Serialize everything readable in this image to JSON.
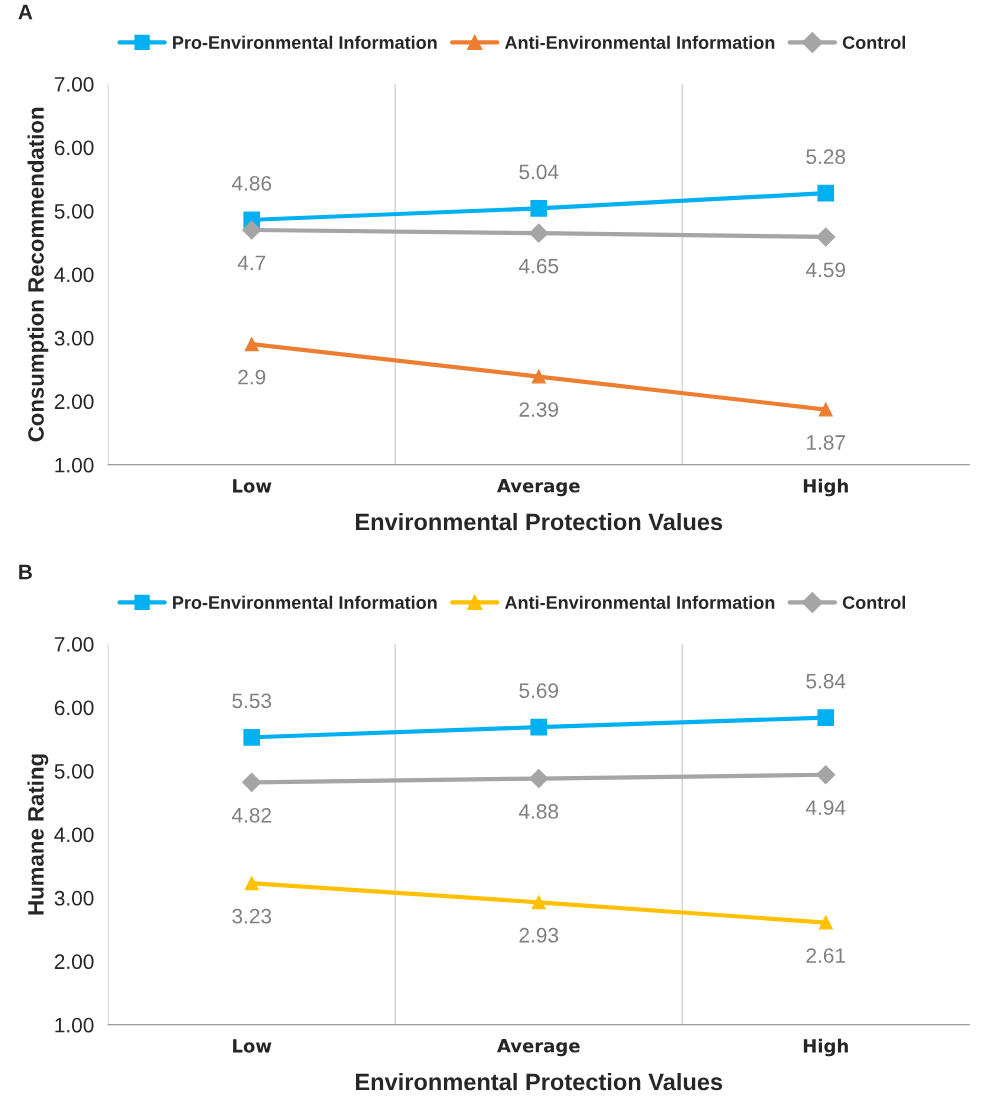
{
  "chart_data": [
    {
      "type": "line",
      "title": "A",
      "xlabel": "Environmental Protection Values",
      "ylabel": "Consumption Recommendation",
      "categories": [
        "Low",
        "Average",
        "High"
      ],
      "series": [
        {
          "name": "Pro-Environmental Information",
          "color": "#00b0f0",
          "marker": "square",
          "values": [
            4.86,
            5.04,
            5.28
          ]
        },
        {
          "name": "Anti-Environmental Information",
          "color": "#ed7d31",
          "marker": "triangle",
          "values": [
            2.9,
            2.39,
            1.87
          ]
        },
        {
          "name": "Control",
          "color": "#a5a5a5",
          "marker": "diamond",
          "values": [
            4.7,
            4.65,
            4.59
          ]
        }
      ],
      "ylim": [
        1,
        7
      ],
      "yticks": [
        {
          "value": 1,
          "label": "1.00"
        },
        {
          "value": 2,
          "label": "2.00"
        },
        {
          "value": 3,
          "label": "3.00"
        },
        {
          "value": 4,
          "label": "4.00"
        },
        {
          "value": 5,
          "label": "5.00"
        },
        {
          "value": 6,
          "label": "6.00"
        },
        {
          "value": 7,
          "label": "7.00"
        }
      ],
      "grid": "x",
      "legend": "top",
      "data_labels": true
    },
    {
      "type": "line",
      "title": "B",
      "xlabel": "Environmental Protection Values",
      "ylabel": "Humane Rating",
      "categories": [
        "Low",
        "Average",
        "High"
      ],
      "series": [
        {
          "name": "Pro-Environmental Information",
          "color": "#00b0f0",
          "marker": "square",
          "values": [
            5.53,
            5.69,
            5.84
          ]
        },
        {
          "name": "Anti-Environmental Information",
          "color": "#ffc000",
          "marker": "triangle",
          "values": [
            3.23,
            2.93,
            2.61
          ]
        },
        {
          "name": "Control",
          "color": "#a5a5a5",
          "marker": "diamond",
          "values": [
            4.82,
            4.88,
            4.94
          ]
        }
      ],
      "ylim": [
        1,
        7
      ],
      "yticks": [
        {
          "value": 1,
          "label": "1.00"
        },
        {
          "value": 2,
          "label": "2.00"
        },
        {
          "value": 3,
          "label": "3.00"
        },
        {
          "value": 4,
          "label": "4.00"
        },
        {
          "value": 5,
          "label": "5.00"
        },
        {
          "value": 6,
          "label": "6.00"
        },
        {
          "value": 7,
          "label": "7.00"
        }
      ],
      "grid": "x",
      "legend": "top",
      "data_labels": true
    }
  ]
}
